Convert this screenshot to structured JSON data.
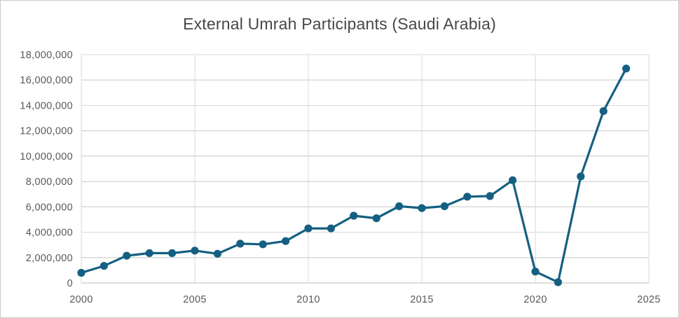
{
  "chart_data": {
    "type": "line",
    "title": "External Umrah Participants (Saudi Arabia)",
    "series": [
      {
        "name": "External Umrah Participants",
        "x": [
          2000,
          2001,
          2002,
          2003,
          2004,
          2005,
          2006,
          2007,
          2008,
          2009,
          2010,
          2011,
          2012,
          2013,
          2014,
          2015,
          2016,
          2017,
          2018,
          2019,
          2020,
          2021,
          2022,
          2023,
          2024
        ],
        "values": [
          800000,
          1350000,
          2150000,
          2350000,
          2350000,
          2550000,
          2300000,
          3100000,
          3050000,
          3300000,
          4300000,
          4300000,
          5300000,
          5100000,
          6050000,
          5900000,
          6050000,
          6800000,
          6850000,
          8100000,
          900000,
          60000,
          8400000,
          13550000,
          16900000
        ]
      }
    ],
    "xlabel": "",
    "ylabel": "",
    "xlim": [
      2000,
      2025
    ],
    "ylim": [
      0,
      18000000
    ],
    "x_ticks": [
      2000,
      2005,
      2010,
      2015,
      2020,
      2025
    ],
    "y_ticks": [
      0,
      2000000,
      4000000,
      6000000,
      8000000,
      10000000,
      12000000,
      14000000,
      16000000,
      18000000
    ],
    "grid": true,
    "legend": "none",
    "marker": "circle"
  },
  "colors": {
    "line": "#156082",
    "marker": "#156082",
    "gridline": "#d9d9d9",
    "axis_line": "#bfbfbf",
    "tick_label": "#595959",
    "title": "#474747",
    "background": "#ffffff",
    "frame_border": "#c9c9c9"
  }
}
